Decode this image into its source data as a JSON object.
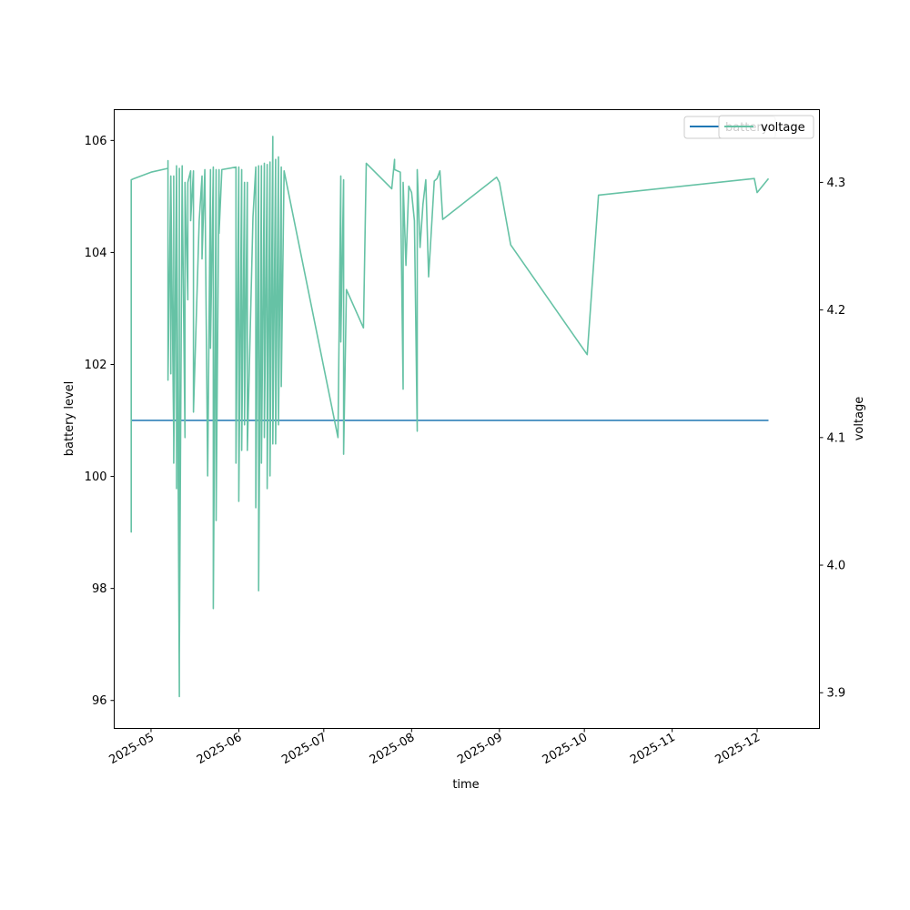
{
  "chart_data": {
    "type": "line",
    "xlabel": "time",
    "ylabel_left": "battery level",
    "ylabel_right": "voltage",
    "x_ticks": [
      "2025-05",
      "2025-06",
      "2025-07",
      "2025-08",
      "2025-09",
      "2025-10",
      "2025-11",
      "2025-12"
    ],
    "xlim": [
      "2025-04-18",
      "2025-12-23"
    ],
    "ylim_left": [
      95.5,
      106.55
    ],
    "ylim_right": [
      3.872,
      4.357
    ],
    "yticks_left": [
      96,
      98,
      100,
      102,
      104,
      106
    ],
    "yticks_right": [
      3.9,
      4.0,
      4.1,
      4.2,
      4.3
    ],
    "legend_position": "upper right",
    "series": [
      {
        "name": "battery",
        "axis": "left",
        "color": "#1f77b4",
        "x": [
          "2025-04-24",
          "2025-12-05"
        ],
        "y": [
          101,
          101
        ]
      },
      {
        "name": "voltage",
        "axis": "right",
        "color": "#66c2a5",
        "x": [
          "2025-04-24",
          "2025-04-24",
          "2025-04-24",
          "2025-04-25",
          "2025-05-01",
          "2025-05-07",
          "2025-05-07",
          "2025-05-07",
          "2025-05-08",
          "2025-05-08",
          "2025-05-08",
          "2025-05-09",
          "2025-05-09",
          "2025-05-09",
          "2025-05-10",
          "2025-05-10",
          "2025-05-10",
          "2025-05-11",
          "2025-05-11",
          "2025-05-11",
          "2025-05-12",
          "2025-05-12",
          "2025-05-13",
          "2025-05-13",
          "2025-05-14",
          "2025-05-14",
          "2025-05-15",
          "2025-05-15",
          "2025-05-16",
          "2025-05-16",
          "2025-05-18",
          "2025-05-19",
          "2025-05-19",
          "2025-05-20",
          "2025-05-21",
          "2025-05-22",
          "2025-05-22",
          "2025-05-23",
          "2025-05-23",
          "2025-05-24",
          "2025-05-24",
          "2025-05-25",
          "2025-05-25",
          "2025-05-26",
          "2025-05-31",
          "2025-05-31",
          "2025-06-01",
          "2025-06-01",
          "2025-06-02",
          "2025-06-02",
          "2025-06-03",
          "2025-06-03",
          "2025-06-04",
          "2025-06-04",
          "2025-06-06",
          "2025-06-07",
          "2025-06-07",
          "2025-06-08",
          "2025-06-08",
          "2025-06-09",
          "2025-06-09",
          "2025-06-10",
          "2025-06-10",
          "2025-06-11",
          "2025-06-11",
          "2025-06-12",
          "2025-06-12",
          "2025-06-13",
          "2025-06-13",
          "2025-06-14",
          "2025-06-14",
          "2025-06-15",
          "2025-06-15",
          "2025-06-16",
          "2025-06-16",
          "2025-06-17",
          "2025-07-06",
          "2025-07-07",
          "2025-07-07",
          "2025-07-08",
          "2025-07-08",
          "2025-07-09",
          "2025-07-15",
          "2025-07-16",
          "2025-07-25",
          "2025-07-26",
          "2025-07-26",
          "2025-07-28",
          "2025-07-29",
          "2025-07-29",
          "2025-07-30",
          "2025-07-31",
          "2025-08-01",
          "2025-08-02",
          "2025-08-03",
          "2025-08-03",
          "2025-08-04",
          "2025-08-05",
          "2025-08-06",
          "2025-08-07",
          "2025-08-09",
          "2025-08-10",
          "2025-08-11",
          "2025-08-12",
          "2025-08-31",
          "2025-09-01",
          "2025-09-05",
          "2025-10-02",
          "2025-10-06",
          "2025-11-30",
          "2025-12-01",
          "2025-12-05"
        ],
        "y": [
          4.155,
          4.026,
          4.302,
          4.303,
          4.308,
          4.311,
          4.317,
          4.145,
          4.305,
          4.15,
          4.305,
          4.1,
          4.305,
          4.08,
          4.31,
          4.06,
          4.313,
          3.897,
          4.311,
          3.93,
          4.313,
          4.3,
          4.1,
          4.3,
          4.208,
          4.3,
          4.309,
          4.27,
          4.309,
          4.12,
          4.27,
          4.305,
          4.24,
          4.31,
          4.07,
          4.31,
          4.17,
          4.312,
          3.966,
          4.31,
          4.035,
          4.31,
          4.26,
          4.31,
          4.312,
          4.08,
          4.312,
          4.05,
          4.31,
          4.09,
          4.3,
          4.11,
          4.3,
          4.09,
          4.273,
          4.312,
          4.045,
          4.313,
          3.98,
          4.313,
          4.08,
          4.315,
          4.1,
          4.314,
          4.06,
          4.316,
          4.07,
          4.336,
          4.095,
          4.318,
          4.095,
          4.32,
          4.11,
          4.312,
          4.14,
          4.309,
          4.1,
          4.305,
          4.175,
          4.302,
          4.087,
          4.216,
          4.186,
          4.315,
          4.295,
          4.318,
          4.31,
          4.308,
          4.138,
          4.3,
          4.235,
          4.297,
          4.292,
          4.27,
          4.105,
          4.31,
          4.249,
          4.283,
          4.302,
          4.226,
          4.301,
          4.303,
          4.309,
          4.271,
          4.304,
          4.3,
          4.251,
          4.165,
          4.29,
          4.303,
          4.292,
          4.303
        ]
      }
    ]
  }
}
